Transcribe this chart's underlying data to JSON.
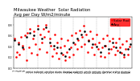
{
  "title": "Milwaukee Weather  Solar Radiation\nAvg per Day W/m2/minute",
  "title_fontsize": 3.8,
  "bg_color": "#ffffff",
  "plot_bg": "#ffffff",
  "grid_color": "#aaaaaa",
  "series": [
    {
      "label": "Solar Rad",
      "color": "#ff0000",
      "marker": "s",
      "markersize": 0.8,
      "linestyle": "none",
      "x": [
        0,
        1,
        2,
        3,
        4,
        5,
        6,
        7,
        8,
        9,
        10,
        11,
        12,
        13,
        14,
        15,
        16,
        17,
        18,
        19,
        20,
        21,
        22,
        23,
        24,
        25,
        26,
        27,
        28,
        29,
        30,
        31,
        32,
        33,
        34,
        35,
        36,
        37,
        38,
        39,
        40,
        41,
        42,
        43,
        44,
        45,
        46,
        47,
        48,
        49,
        50,
        51,
        52,
        53,
        54,
        55,
        56,
        57,
        58,
        59,
        60,
        61,
        62,
        63,
        64,
        65,
        66,
        67,
        68,
        69,
        70,
        71,
        72,
        73,
        74,
        75,
        76,
        77,
        78,
        79,
        80,
        81,
        82,
        83,
        84,
        85,
        86,
        87,
        88,
        89
      ],
      "y": [
        0.55,
        0.2,
        0.3,
        0.48,
        0.25,
        0.58,
        0.42,
        0.35,
        0.6,
        0.15,
        0.65,
        0.38,
        0.72,
        0.28,
        0.55,
        0.68,
        0.45,
        0.25,
        0.78,
        0.35,
        0.62,
        0.48,
        0.72,
        0.58,
        0.8,
        0.3,
        0.68,
        0.55,
        0.42,
        0.22,
        0.35,
        0.62,
        0.28,
        0.48,
        0.18,
        0.38,
        0.55,
        0.25,
        0.42,
        0.15,
        0.3,
        0.52,
        0.2,
        0.38,
        0.6,
        0.25,
        0.45,
        0.65,
        0.35,
        0.52,
        0.7,
        0.4,
        0.58,
        0.78,
        0.45,
        0.62,
        0.3,
        0.52,
        0.68,
        0.38,
        0.55,
        0.25,
        0.45,
        0.62,
        0.35,
        0.48,
        0.22,
        0.38,
        0.55,
        0.2,
        0.42,
        0.6,
        0.28,
        0.5,
        0.35,
        0.55,
        0.4,
        0.25,
        0.48,
        0.32,
        0.55,
        0.38,
        0.28,
        0.45,
        0.2,
        0.35,
        0.5,
        0.25,
        0.4,
        0.55
      ]
    },
    {
      "label": "Avg",
      "color": "#000000",
      "marker": "s",
      "markersize": 0.8,
      "linestyle": "none",
      "x": [
        0,
        3,
        6,
        9,
        12,
        15,
        18,
        21,
        24,
        27,
        30,
        33,
        36,
        39,
        42,
        45,
        48,
        51,
        54,
        57,
        60,
        63,
        66,
        69,
        72,
        75,
        78,
        81,
        84,
        87,
        89
      ],
      "y": [
        0.52,
        0.45,
        0.38,
        0.58,
        0.65,
        0.6,
        0.72,
        0.55,
        0.75,
        0.48,
        0.42,
        0.38,
        0.28,
        0.22,
        0.35,
        0.48,
        0.55,
        0.62,
        0.68,
        0.5,
        0.45,
        0.4,
        0.3,
        0.42,
        0.35,
        0.48,
        0.38,
        0.3,
        0.25,
        0.35,
        0.45
      ]
    }
  ],
  "vlines_x": [
    9,
    18,
    27,
    36,
    45,
    54,
    63,
    72,
    81
  ],
  "ylim": [
    0.0,
    0.95
  ],
  "xlim": [
    -0.5,
    90
  ],
  "tick_fontsize": 2.5,
  "xtick_count": 45,
  "legend_fontsize": 3.0,
  "legend_facecolor": "#ff0000",
  "legend_edgecolor": "#ff0000"
}
